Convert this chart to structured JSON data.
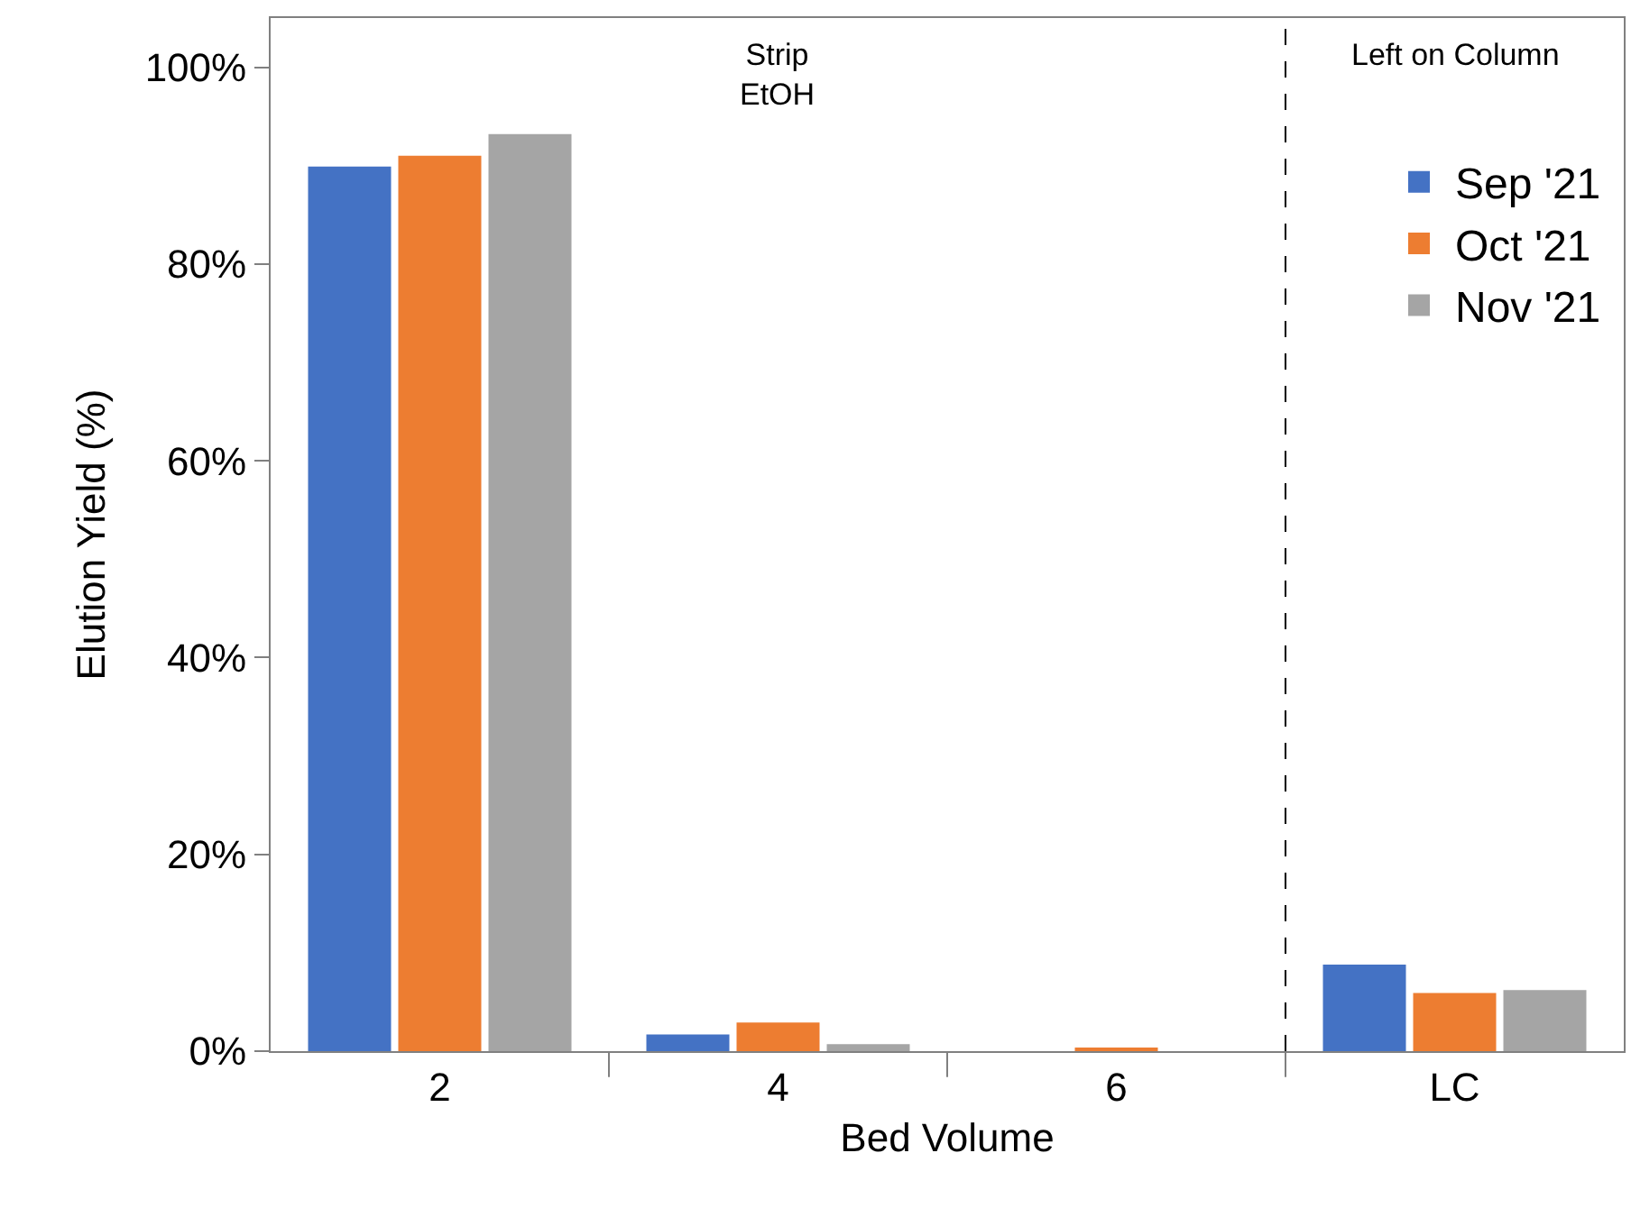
{
  "chart_data": {
    "type": "bar",
    "xlabel": "Bed Volume",
    "ylabel": "Elution Yield (%)",
    "categories": [
      "2",
      "4",
      "6",
      "LC"
    ],
    "series": [
      {
        "name": "Sep '21",
        "color": "#4472c4",
        "values": [
          89.9,
          1.7,
          0,
          8.8
        ]
      },
      {
        "name": "Oct '21",
        "color": "#ed7d31",
        "values": [
          91.0,
          2.9,
          0.3,
          5.9
        ]
      },
      {
        "name": "Nov '21",
        "color": "#a5a5a5",
        "values": [
          93.2,
          0.7,
          0,
          6.2
        ]
      }
    ],
    "ylim": [
      0,
      105
    ],
    "yticks": [
      {
        "value": 0,
        "label": "0%"
      },
      {
        "value": 20,
        "label": "20%"
      },
      {
        "value": 40,
        "label": "40%"
      },
      {
        "value": 60,
        "label": "60%"
      },
      {
        "value": 80,
        "label": "80%"
      },
      {
        "value": 100,
        "label": "100%"
      }
    ],
    "annotations": [
      "Strip\nEtOH",
      "Left on Column"
    ],
    "legend": "top right"
  }
}
